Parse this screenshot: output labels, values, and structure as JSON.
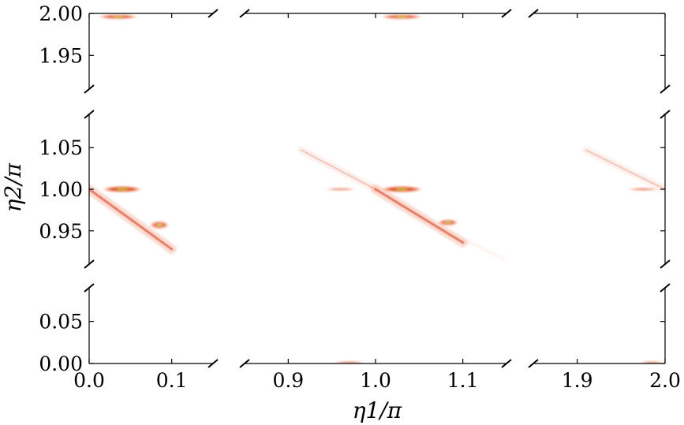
{
  "chart_data": {
    "type": "heatmap",
    "title": "",
    "xlabel": "η1/π",
    "ylabel": "η2/π",
    "broken_axes": true,
    "grid": false,
    "legend": "none",
    "colormap": [
      "#ffffff",
      "#fde0d4",
      "#f08a6a",
      "#d9401f",
      "#e8d83a",
      "#2e9a3a"
    ],
    "x_panels": [
      {
        "range": [
          0.0,
          0.15
        ],
        "ticks": [
          0.0,
          0.1
        ],
        "tick_labels": [
          "0.0",
          "0.1"
        ]
      },
      {
        "range": [
          0.85,
          1.15
        ],
        "ticks": [
          0.9,
          1.0,
          1.1
        ],
        "tick_labels": [
          "0.9",
          "1.0",
          "1.1"
        ]
      },
      {
        "range": [
          1.85,
          2.0
        ],
        "ticks": [
          1.9,
          2.0
        ],
        "tick_labels": [
          "1.9",
          "2.0"
        ]
      }
    ],
    "y_panels": [
      {
        "range": [
          1.91,
          2.0
        ],
        "ticks": [
          1.95,
          2.0
        ],
        "tick_labels": [
          "1.95",
          "2.00"
        ]
      },
      {
        "range": [
          0.91,
          1.09
        ],
        "ticks": [
          0.95,
          1.0,
          1.05
        ],
        "tick_labels": [
          "0.95",
          "1.00",
          "1.05"
        ]
      },
      {
        "range": [
          0.0,
          0.09
        ],
        "ticks": [
          0.0,
          0.05
        ],
        "tick_labels": [
          "0.00",
          "0.05"
        ]
      }
    ],
    "features": [
      {
        "kind": "blob",
        "x": 0.04,
        "y": 1.0,
        "rx": 0.025,
        "ry": 0.004,
        "intensity": 0.9
      },
      {
        "kind": "streak",
        "x1": 0.0,
        "y1": 1.0,
        "x2": 0.1,
        "y2": 0.928,
        "intensity": 0.7
      },
      {
        "kind": "blob",
        "x": 0.085,
        "y": 0.957,
        "rx": 0.012,
        "ry": 0.005,
        "intensity": 0.65
      },
      {
        "kind": "blob",
        "x": 1.03,
        "y": 1.0,
        "rx": 0.025,
        "ry": 0.004,
        "intensity": 0.9
      },
      {
        "kind": "blob",
        "x": 0.96,
        "y": 1.0,
        "rx": 0.02,
        "ry": 0.002,
        "intensity": 0.45
      },
      {
        "kind": "streak",
        "x1": 1.0,
        "y1": 1.0,
        "x2": 1.1,
        "y2": 0.936,
        "intensity": 0.7
      },
      {
        "kind": "blob",
        "x": 1.083,
        "y": 0.96,
        "rx": 0.012,
        "ry": 0.004,
        "intensity": 0.65
      },
      {
        "kind": "streak",
        "x1": 0.915,
        "y1": 1.047,
        "x2": 1.0,
        "y2": 1.0,
        "intensity": 0.3
      },
      {
        "kind": "streak",
        "x1": 1.1,
        "y1": 0.94,
        "x2": 1.15,
        "y2": 0.915,
        "intensity": 0.08
      },
      {
        "kind": "blob",
        "x": 1.975,
        "y": 1.0,
        "rx": 0.02,
        "ry": 0.002,
        "intensity": 0.55
      },
      {
        "kind": "streak",
        "x1": 1.91,
        "y1": 1.047,
        "x2": 2.0,
        "y2": 1.0,
        "intensity": 0.3
      },
      {
        "kind": "blob",
        "x": 0.035,
        "y": 1.996,
        "rx": 0.025,
        "ry": 0.003,
        "intensity": 0.75
      },
      {
        "kind": "blob",
        "x": 1.03,
        "y": 1.996,
        "rx": 0.025,
        "ry": 0.003,
        "intensity": 0.75
      },
      {
        "kind": "blob",
        "x": 0.97,
        "y": 0.001,
        "rx": 0.02,
        "ry": 0.002,
        "intensity": 0.5
      },
      {
        "kind": "blob",
        "x": 1.985,
        "y": 0.001,
        "rx": 0.015,
        "ry": 0.002,
        "intensity": 0.5
      }
    ]
  }
}
